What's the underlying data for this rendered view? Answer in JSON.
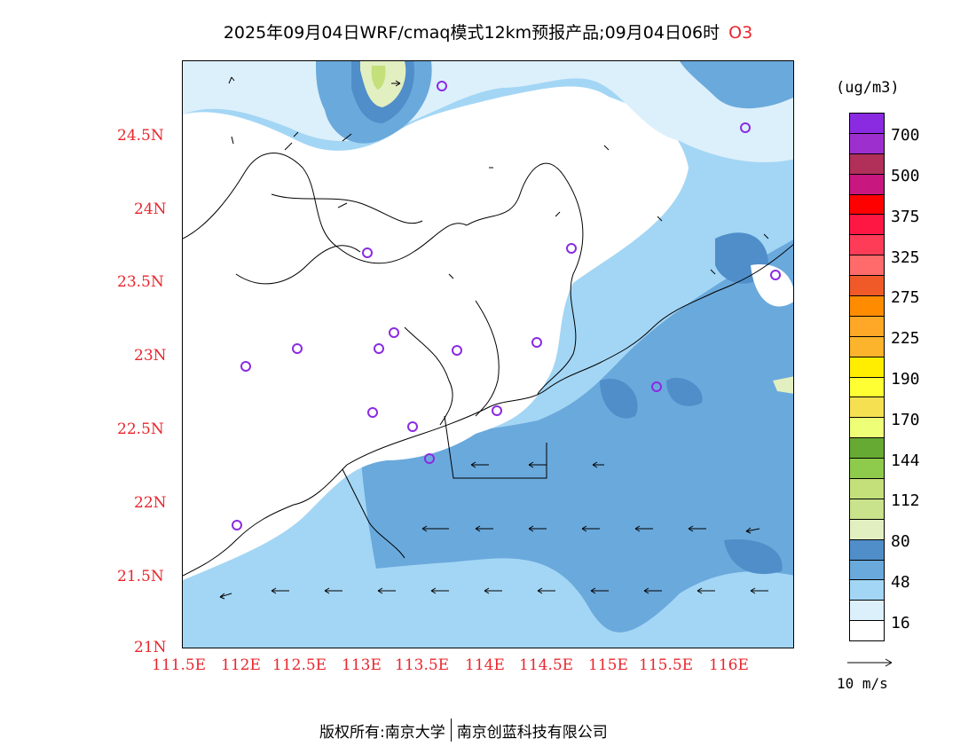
{
  "title": {
    "main": "2025年09月04日WRF/cmaq模式12km预报产品;09月04日06时",
    "species": "O3"
  },
  "axes": {
    "lat_labels": [
      "24.5N",
      "24N",
      "23.5N",
      "23N",
      "22.5N",
      "22N",
      "21.5N",
      "21N"
    ],
    "lon_labels": [
      "111.5E",
      "112E",
      "112.5E",
      "113E",
      "113.5E",
      "114E",
      "114.5E",
      "115E",
      "115.5E",
      "116E"
    ]
  },
  "legend": {
    "unit": "(ug/m3)",
    "tick_labels": [
      "700",
      "500",
      "375",
      "325",
      "275",
      "225",
      "190",
      "170",
      "144",
      "112",
      "80",
      "48",
      "16"
    ],
    "colors": [
      "#8a2be2",
      "#9d2fcf",
      "#b0305a",
      "#c8177e",
      "#ff0000",
      "#ff1744",
      "#ff3c57",
      "#ff6a6a",
      "#f05a28",
      "#ff8c00",
      "#ffa726",
      "#fbb42c",
      "#ffee00",
      "#ffff33",
      "#f5e052",
      "#eeff77",
      "#66aa33",
      "#8ecb4c",
      "#c3e07a",
      "#c8e38c",
      "#e2efc0",
      "#4f8ec9",
      "#6aa9dc",
      "#a3d6f5",
      "#dcf0fb",
      "#ffffff"
    ]
  },
  "wind_reference": {
    "label": "10 m/s"
  },
  "footer": {
    "left": "版权所有:南京大学",
    "right": "南京创蓝科技有限公司"
  },
  "colors": {
    "label_red": "#e8262d",
    "sea_light": "#a3d6f5",
    "sea_mid": "#6aa9dc",
    "sea_dark": "#4f8ec9",
    "marker": "#8a2be2"
  }
}
